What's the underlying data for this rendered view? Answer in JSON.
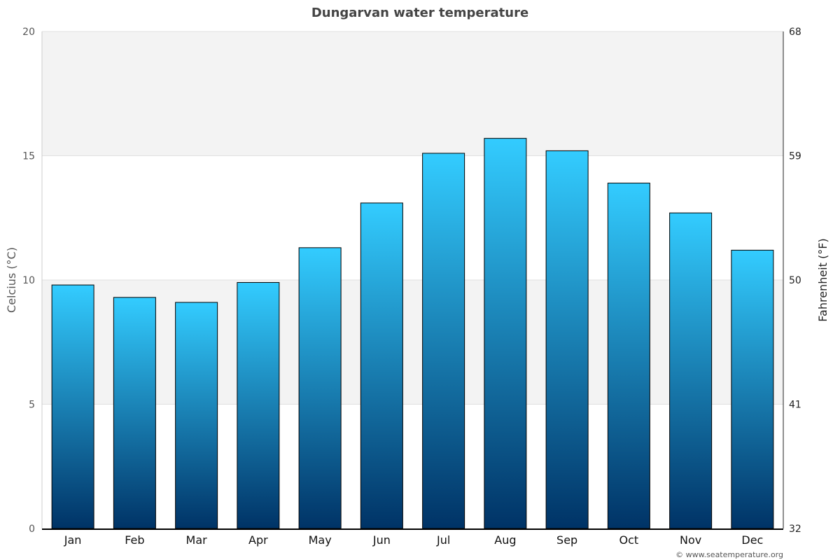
{
  "chart_data": {
    "type": "bar",
    "title": "Dungarvan water temperature",
    "ylabel": "Celcius (°C)",
    "y2label": "Fahrenheit (°F)",
    "categories": [
      "Jan",
      "Feb",
      "Mar",
      "Apr",
      "May",
      "Jun",
      "Jul",
      "Aug",
      "Sep",
      "Oct",
      "Nov",
      "Dec"
    ],
    "values": [
      9.8,
      9.3,
      9.1,
      9.9,
      11.3,
      13.1,
      15.1,
      15.7,
      15.2,
      13.9,
      12.7,
      11.2
    ],
    "ylim": [
      0,
      20
    ],
    "yticks": [
      "0",
      "5",
      "10",
      "15",
      "20"
    ],
    "y2ticks": [
      "32",
      "41",
      "50",
      "59",
      "68"
    ],
    "grid": true,
    "alternating_bands": true,
    "colors": {
      "bar_top": "#33ccff",
      "bar_bottom": "#003366",
      "band": "#f3f3f3",
      "title": "#444444"
    }
  },
  "credit": "© www.seatemperature.org"
}
